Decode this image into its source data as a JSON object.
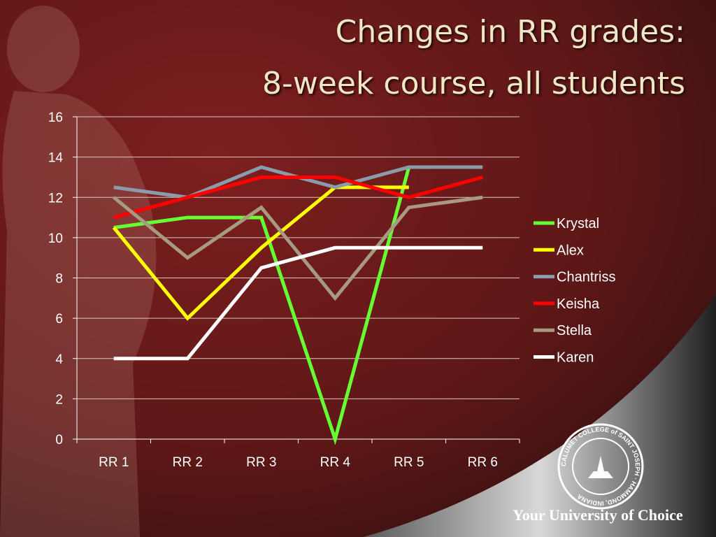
{
  "slide": {
    "title_line1": "Changes in RR grades:",
    "title_line2": "8-week course, all students",
    "tagline": "Your University of Choice",
    "seal_text": "CALUMET COLLEGE of SAINT JOSEPH · HAMMOND, INDIANA"
  },
  "colors": {
    "background_dark": "#3a1414",
    "background_red": "#7a1e1e",
    "title": "#efe6c6",
    "Krystal": "#66ff33",
    "Alex": "#ffff00",
    "Chantriss": "#8a9bab",
    "Keisha": "#ff0000",
    "Stella": "#a89a80",
    "Karen": "#ffffff"
  },
  "chart_data": {
    "type": "line",
    "title": "",
    "xlabel": "",
    "ylabel": "",
    "categories": [
      "RR 1",
      "RR 2",
      "RR 3",
      "RR 4",
      "RR 5",
      "RR 6"
    ],
    "ylim": [
      0,
      16
    ],
    "yticks": [
      0,
      2,
      4,
      6,
      8,
      10,
      12,
      14,
      16
    ],
    "grid": true,
    "legend": "right",
    "series": [
      {
        "name": "Krystal",
        "values": [
          10.5,
          11,
          11,
          0,
          13.5,
          null
        ]
      },
      {
        "name": "Alex",
        "values": [
          10.5,
          6,
          9.5,
          12.5,
          12.5,
          null
        ]
      },
      {
        "name": "Chantriss",
        "values": [
          12.5,
          12,
          13.5,
          12.5,
          13.5,
          13.5
        ]
      },
      {
        "name": "Keisha",
        "values": [
          11,
          12,
          13,
          13,
          12,
          13
        ]
      },
      {
        "name": "Stella",
        "values": [
          12,
          9,
          11.5,
          7,
          11.5,
          12
        ]
      },
      {
        "name": "Karen",
        "values": [
          4,
          4,
          8.5,
          9.5,
          9.5,
          9.5
        ]
      }
    ]
  }
}
